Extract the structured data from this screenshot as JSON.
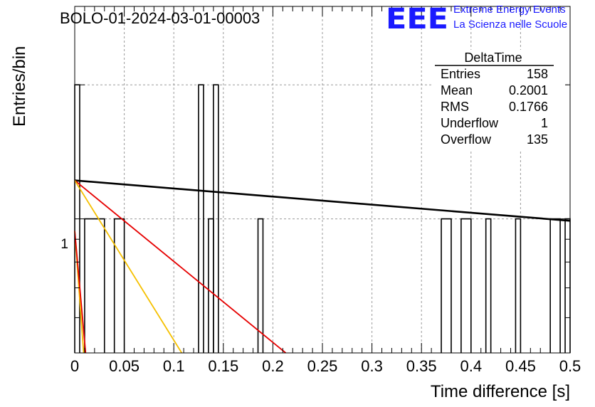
{
  "logo": {
    "letters": "EEE",
    "line1": "Extreme Energy Events",
    "line2": "La Scienza nelle Scuole",
    "color": "#1a1aff"
  },
  "chart_data": {
    "type": "histogram",
    "title": "BOLO-01-2024-03-01-00003",
    "xlabel": "Time difference [s]",
    "ylabel": "Entries/bin",
    "xlim": [
      0,
      0.5
    ],
    "y_scale": "log",
    "y_tick_labels": [
      "1"
    ],
    "x_ticks": [
      0,
      0.05,
      0.1,
      0.15,
      0.2,
      0.25,
      0.3,
      0.35,
      0.4,
      0.45,
      0.5
    ],
    "x_tick_labels": [
      "0",
      "0.05",
      "0.1",
      "0.15",
      "0.2",
      "0.25",
      "0.3",
      "0.35",
      "0.4",
      "0.45",
      "0.5"
    ],
    "grid": true,
    "bins": [
      {
        "x0": 0.0,
        "x1": 0.005,
        "count": 2
      },
      {
        "x0": 0.01,
        "x1": 0.03,
        "count": 1
      },
      {
        "x0": 0.04,
        "x1": 0.05,
        "count": 1
      },
      {
        "x0": 0.125,
        "x1": 0.13,
        "count": 2
      },
      {
        "x0": 0.135,
        "x1": 0.14,
        "count": 1
      },
      {
        "x0": 0.14,
        "x1": 0.145,
        "count": 2
      },
      {
        "x0": 0.185,
        "x1": 0.19,
        "count": 1
      },
      {
        "x0": 0.37,
        "x1": 0.38,
        "count": 1
      },
      {
        "x0": 0.39,
        "x1": 0.4,
        "count": 1
      },
      {
        "x0": 0.415,
        "x1": 0.42,
        "count": 1
      },
      {
        "x0": 0.445,
        "x1": 0.45,
        "count": 1
      },
      {
        "x0": 0.48,
        "x1": 0.49,
        "count": 1
      },
      {
        "x0": 0.495,
        "x1": 0.5,
        "count": 1
      }
    ],
    "fits": [
      {
        "color": "#000000",
        "points": [
          [
            0.0,
            1.22
          ],
          [
            0.5,
            0.99
          ]
        ]
      },
      {
        "color": "#e60000",
        "points": [
          [
            0.0,
            1.22
          ],
          [
            0.213,
            0.5
          ]
        ]
      },
      {
        "color": "#f5c000",
        "points": [
          [
            0.0,
            1.22
          ],
          [
            0.108,
            0.5
          ]
        ]
      },
      {
        "color": "#f5c000",
        "points": [
          [
            0.0,
            0.94
          ],
          [
            0.009,
            0.5
          ]
        ]
      },
      {
        "color": "#e60000",
        "points": [
          [
            0.0,
            0.94
          ],
          [
            0.011,
            0.5
          ]
        ]
      }
    ],
    "stats": {
      "title": "DeltaTime",
      "rows": [
        {
          "label": "Entries",
          "value": "158"
        },
        {
          "label": "Mean",
          "value": "0.2001"
        },
        {
          "label": "RMS",
          "value": "0.1766"
        },
        {
          "label": "Underflow",
          "value": "1"
        },
        {
          "label": "Overflow",
          "value": "135"
        }
      ]
    }
  }
}
